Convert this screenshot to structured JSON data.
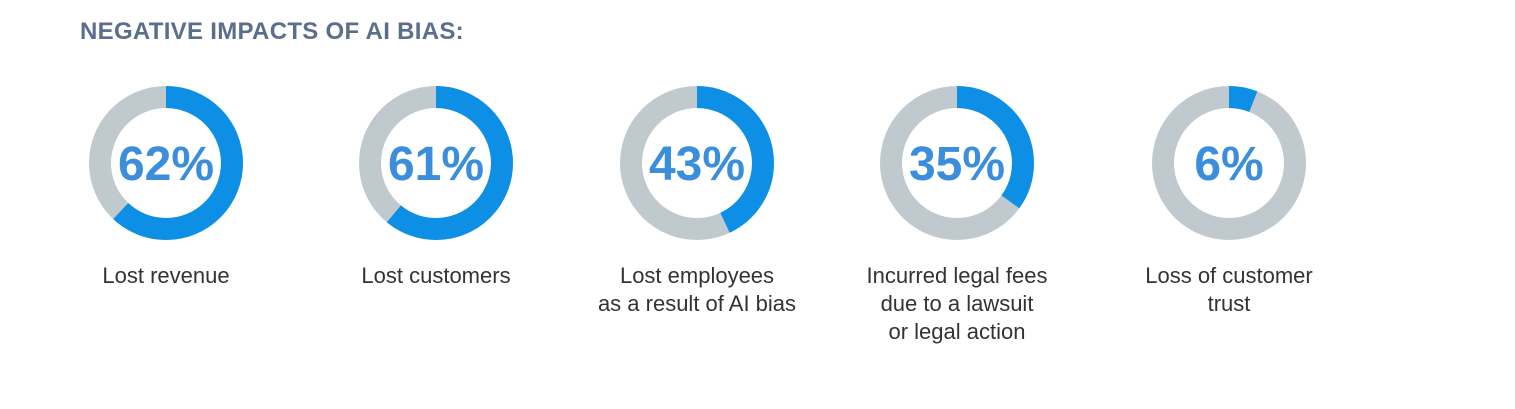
{
  "chart_data": {
    "type": "donut",
    "title": "NEGATIVE IMPACTS OF AI BIAS:",
    "items": [
      {
        "value": 62,
        "display": "62%",
        "label": "Lost revenue"
      },
      {
        "value": 61,
        "display": "61%",
        "label": "Lost customers"
      },
      {
        "value": 43,
        "display": "43%",
        "label": "Lost employees\nas a result of AI bias"
      },
      {
        "value": 35,
        "display": "35%",
        "label": "Incurred legal fees\ndue to a lawsuit\nor legal action"
      },
      {
        "value": 6,
        "display": "6%",
        "label": "Loss of customer\ntrust"
      }
    ],
    "colors": {
      "filled": "#0d8fe6",
      "remaining": "#c0c9ce",
      "value_text": "#3a8edb",
      "title": "#5b6f8c"
    }
  }
}
